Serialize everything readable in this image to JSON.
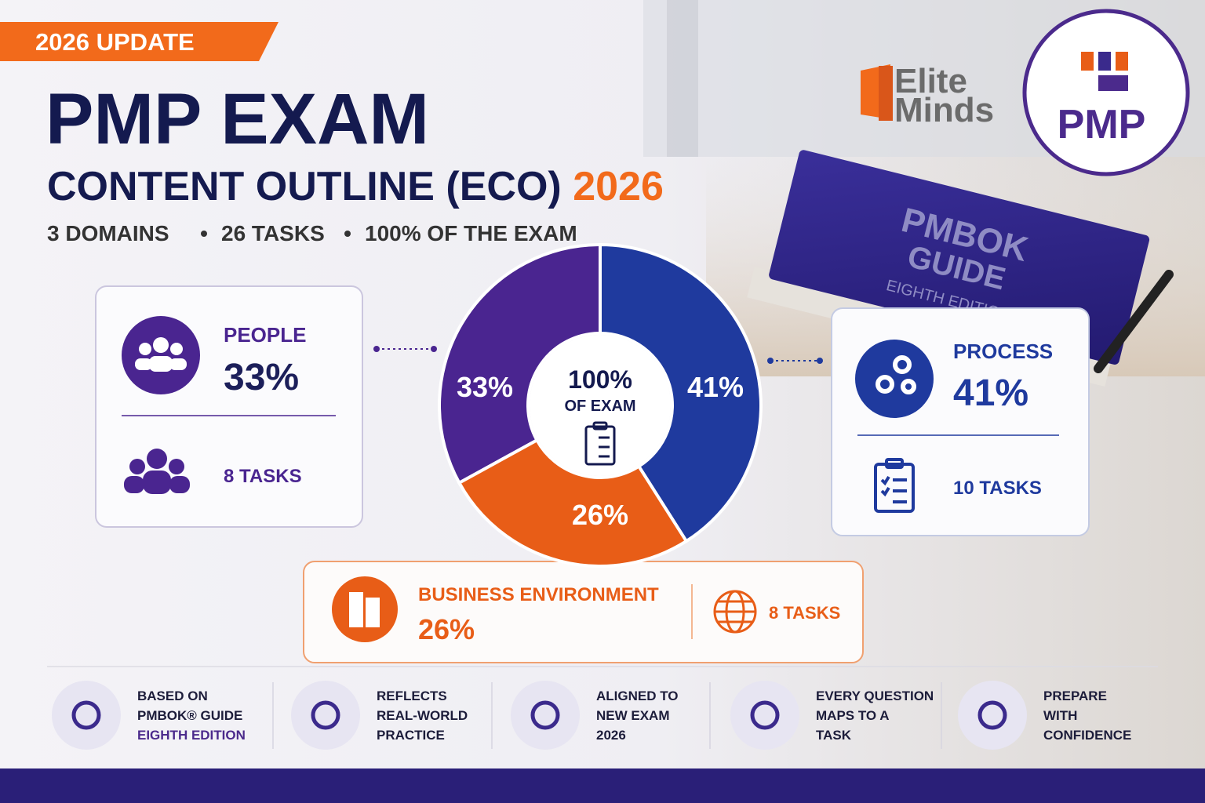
{
  "badge": "2026 UPDATE",
  "title": "PMP EXAM",
  "subtitle": "CONTENT OUTLINE (ECO)",
  "subtitle_year": "2026",
  "tagline": [
    "3 DOMAINS",
    "26 TASKS",
    "100% OF THE EXAM"
  ],
  "brand": {
    "line1": "Elite",
    "line2": "Minds",
    "seal": "PMP"
  },
  "book": {
    "line1": "PMBOK",
    "line2": "GUIDE",
    "edition": "EIGHTH EDITION"
  },
  "chart_data": {
    "type": "pie",
    "donut": true,
    "center_label": "100%",
    "center_sublabel": "OF EXAM",
    "categories": [
      "PEOPLE",
      "PROCESS",
      "BUSINESS ENVIRONMENT"
    ],
    "values": [
      33,
      41,
      26
    ],
    "value_labels": [
      "33%",
      "41%",
      "26%"
    ],
    "colors": [
      "#4a2590",
      "#1f3a9e",
      "#e85d17"
    ]
  },
  "tasks": [
    "8 TASKS",
    "10 TASKS",
    "8 TASKS"
  ],
  "features": [
    [
      "BASED ON",
      "PMBOK® GUIDE",
      "EIGHTH EDITION"
    ],
    [
      "REFLECTS",
      "REAL-WORLD",
      "PRACTICE"
    ],
    [
      "ALIGNED TO",
      "NEW EXAM",
      "2026"
    ],
    [
      "EVERY QUESTION",
      "MAPS TO A",
      "TASK"
    ],
    [
      "PREPARE",
      "WITH",
      "CONFIDENCE"
    ]
  ]
}
